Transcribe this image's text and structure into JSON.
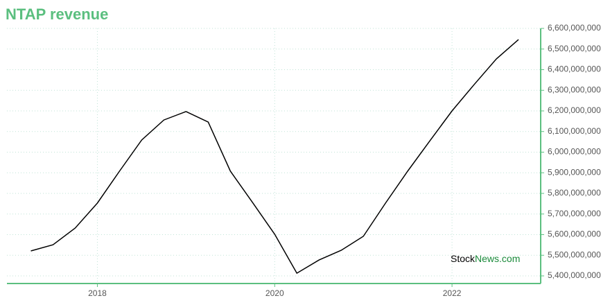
{
  "chart_data": {
    "type": "line",
    "title": "NTAP revenue",
    "watermark": [
      "Stock",
      "News.com"
    ],
    "x": [
      2017.25,
      2017.5,
      2017.75,
      2018.0,
      2018.25,
      2018.5,
      2018.75,
      2019.0,
      2019.25,
      2019.5,
      2019.75,
      2020.0,
      2020.25,
      2020.5,
      2020.75,
      2021.0,
      2021.25,
      2021.5,
      2021.75,
      2022.0,
      2022.25,
      2022.5,
      2022.75
    ],
    "series": [
      {
        "name": "NTAP",
        "color": "#000000",
        "values": [
          5521000000,
          5551000000,
          5632000000,
          5753000000,
          5908000000,
          6059000000,
          6156000000,
          6197000000,
          6146000000,
          5908000000,
          5756000000,
          5602000000,
          5413000000,
          5477000000,
          5524000000,
          5592000000,
          5753000000,
          5908000000,
          6055000000,
          6200000000,
          6328000000,
          6452000000,
          6546000000
        ]
      }
    ],
    "xlim": [
      2016.98,
      2023.0
    ],
    "xticks": [
      2018,
      2020,
      2022
    ],
    "ylim": [
      5400000000,
      6600000000
    ],
    "yticks": [
      {
        "value": 5400000000,
        "label": "5,400,000,000"
      },
      {
        "value": 5500000000,
        "label": "5,500,000,000"
      },
      {
        "value": 5600000000,
        "label": "5,600,000,000"
      },
      {
        "value": 5700000000,
        "label": "5,700,000,000"
      },
      {
        "value": 5800000000,
        "label": "5,800,000,000"
      },
      {
        "value": 5900000000,
        "label": "5,900,000,000"
      },
      {
        "value": 6000000000,
        "label": "6,000,000,000"
      },
      {
        "value": 6100000000,
        "label": "6,100,000,000"
      },
      {
        "value": 6200000000,
        "label": "6,200,000,000"
      },
      {
        "value": 6300000000,
        "label": "6,300,000,000"
      },
      {
        "value": 6400000000,
        "label": "6,400,000,000"
      },
      {
        "value": 6500000000,
        "label": "6,500,000,000"
      },
      {
        "value": 6600000000,
        "label": "6,600,000,000"
      }
    ],
    "grid": true
  }
}
